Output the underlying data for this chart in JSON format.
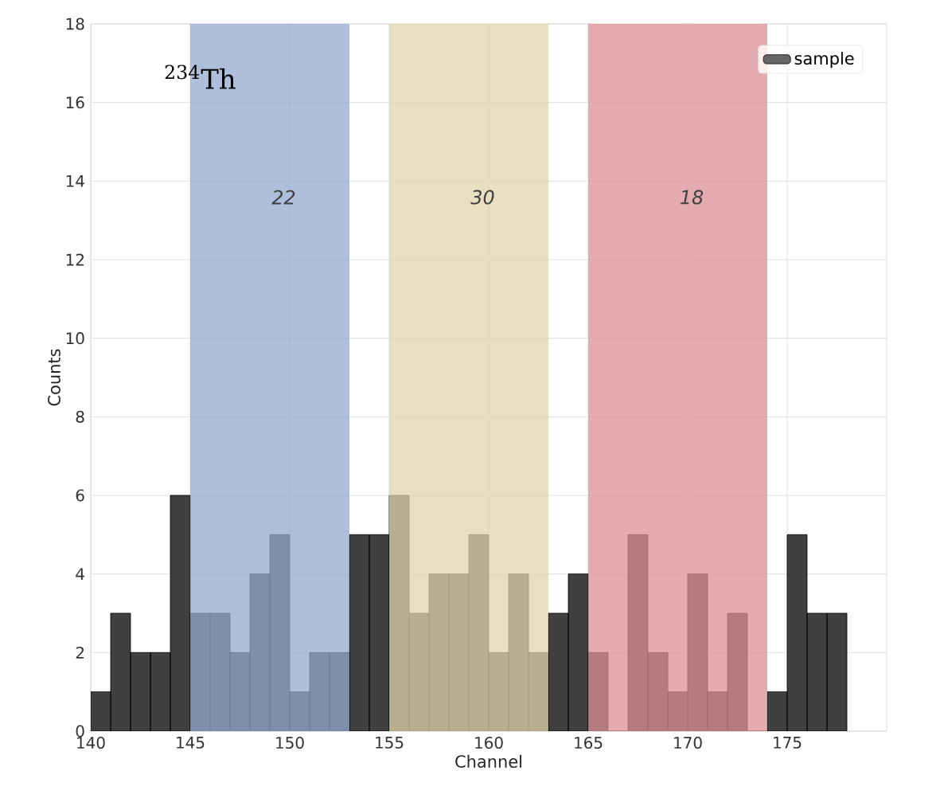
{
  "chart_data": {
    "type": "histogram",
    "xlabel": "Channel",
    "ylabel": "Counts",
    "bins": [
      140,
      141,
      142,
      143,
      144,
      145,
      146,
      147,
      148,
      149,
      150,
      151,
      152,
      153,
      154,
      155,
      156,
      157,
      158,
      159,
      160,
      161,
      162,
      163,
      164,
      165,
      166,
      167,
      168,
      169,
      170,
      171,
      172,
      173,
      174,
      175,
      176,
      177,
      178
    ],
    "series": [
      {
        "name": "sample",
        "color": "#404040",
        "values": [
          1,
          3,
          2,
          2,
          6,
          3,
          3,
          2,
          4,
          5,
          1,
          2,
          2,
          5,
          5,
          6,
          3,
          4,
          4,
          5,
          2,
          4,
          2,
          3,
          4,
          2,
          0,
          5,
          2,
          1,
          4,
          1,
          3,
          0,
          1,
          5,
          3,
          3
        ]
      }
    ],
    "bands": [
      {
        "axis": "x",
        "from": 145,
        "to": 153,
        "label": "22",
        "color": "#91a9cf"
      },
      {
        "axis": "x",
        "from": 155,
        "to": 163,
        "label": "30",
        "color": "#e0d3ab"
      },
      {
        "axis": "x",
        "from": 165,
        "to": 174,
        "label": "18",
        "color": "#db9095"
      }
    ],
    "annotations": [
      "$^{234}$Th"
    ],
    "xlim": [
      140,
      180
    ],
    "ylim": [
      0,
      18
    ],
    "xticks": [
      140,
      145,
      150,
      155,
      160,
      165,
      170,
      175
    ],
    "yticks": [
      0,
      2,
      4,
      6,
      8,
      10,
      12,
      14,
      16,
      18
    ],
    "grid": true,
    "legend": "top right"
  }
}
